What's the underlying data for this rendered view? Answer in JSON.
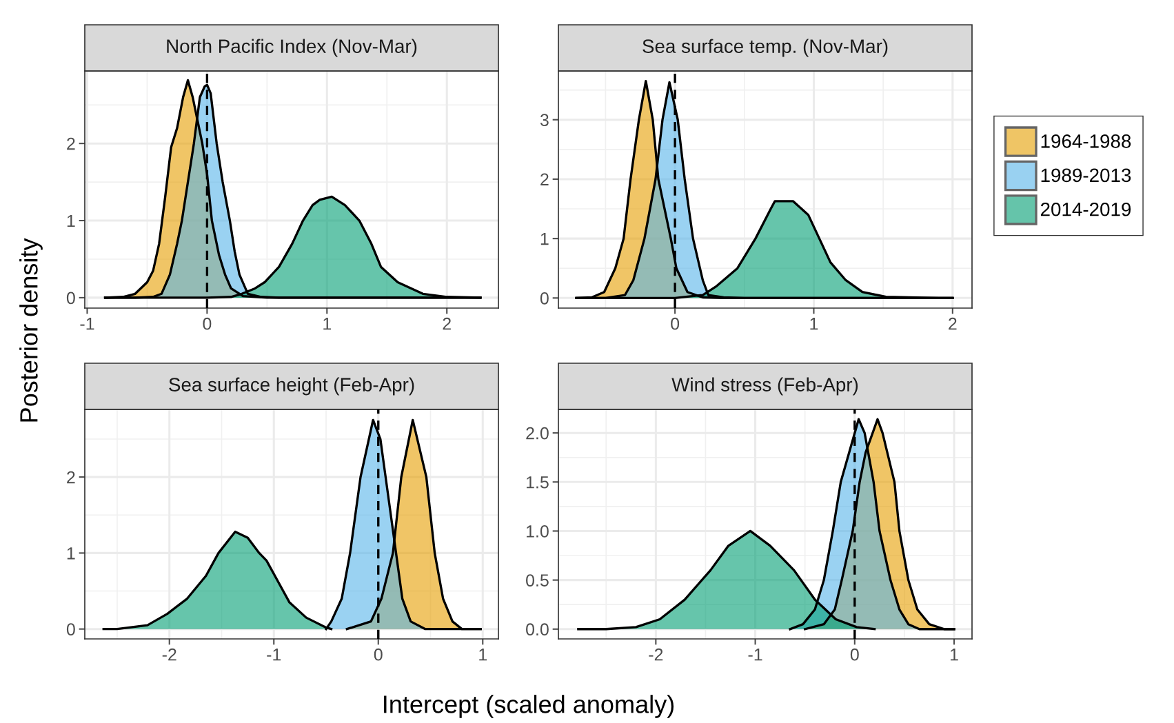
{
  "chart_data": [
    {
      "type": "area",
      "title": "North Pacific Index (Nov-Mar)",
      "ylabel": "Posterior density",
      "xlim": [
        -1.02,
        2.43
      ],
      "ylim": [
        -0.135,
        2.94
      ],
      "xticks": [
        -1,
        0,
        1,
        2
      ],
      "yticks": [
        0,
        1,
        2
      ],
      "grid": true,
      "legend": "right",
      "ref_lines": [
        {
          "axis": "x",
          "value": 0,
          "line_style": "dashed",
          "color": "#000000"
        }
      ],
      "series": [
        {
          "name": "1964-1988",
          "color": "#e69f00",
          "x": [
            -0.85,
            -0.7,
            -0.6,
            -0.5,
            -0.45,
            -0.4,
            -0.35,
            -0.3,
            -0.25,
            -0.2,
            -0.16,
            -0.12,
            -0.08,
            -0.04,
            0.0,
            0.04,
            0.1,
            0.15,
            0.2,
            0.3,
            0.5,
            2.28
          ],
          "values": [
            0,
            0.01,
            0.05,
            0.2,
            0.35,
            0.7,
            1.3,
            1.95,
            2.2,
            2.6,
            2.82,
            2.6,
            2.3,
            2.0,
            1.6,
            1.0,
            0.55,
            0.3,
            0.12,
            0.02,
            0,
            0
          ]
        },
        {
          "name": "1989-2013",
          "color": "#56b4e9",
          "x": [
            -0.85,
            -0.6,
            -0.45,
            -0.38,
            -0.31,
            -0.25,
            -0.21,
            -0.15,
            -0.11,
            -0.06,
            -0.02,
            0.0,
            0.03,
            0.08,
            0.13,
            0.19,
            0.23,
            0.27,
            0.34,
            0.45,
            0.6,
            2.28
          ],
          "values": [
            0,
            0,
            0.01,
            0.05,
            0.3,
            0.7,
            1.0,
            1.6,
            2.0,
            2.6,
            2.74,
            2.76,
            2.65,
            2.0,
            1.5,
            1.0,
            0.6,
            0.3,
            0.05,
            0.01,
            0,
            0
          ]
        },
        {
          "name": "2014-2019",
          "color": "#009e73",
          "x": [
            -0.85,
            0.0,
            0.2,
            0.29,
            0.4,
            0.48,
            0.6,
            0.71,
            0.8,
            0.88,
            0.94,
            1.04,
            1.15,
            1.27,
            1.37,
            1.45,
            1.59,
            1.8,
            2.0,
            2.28
          ],
          "values": [
            0,
            0,
            0.01,
            0.05,
            0.12,
            0.2,
            0.4,
            0.7,
            1.0,
            1.2,
            1.27,
            1.31,
            1.2,
            1.0,
            0.7,
            0.4,
            0.2,
            0.05,
            0.01,
            0
          ]
        }
      ]
    },
    {
      "type": "area",
      "title": "Sea surface temp. (Nov-Mar)",
      "xlim": [
        -0.84,
        2.14
      ],
      "ylim": [
        -0.17,
        3.82
      ],
      "xticks": [
        0,
        1,
        2
      ],
      "yticks": [
        0,
        1,
        2,
        3
      ],
      "grid": true,
      "legend": "right",
      "ref_lines": [
        {
          "axis": "x",
          "value": 0,
          "line_style": "dashed",
          "color": "#000000"
        }
      ],
      "series": [
        {
          "name": "1964-1988",
          "color": "#e69f00",
          "x": [
            -0.71,
            -0.6,
            -0.51,
            -0.43,
            -0.37,
            -0.32,
            -0.26,
            -0.21,
            -0.16,
            -0.12,
            -0.03,
            0.01,
            0.09,
            0.2,
            0.35,
            2.0
          ],
          "values": [
            0,
            0.01,
            0.1,
            0.5,
            1.0,
            2.0,
            3.0,
            3.65,
            3.0,
            2.0,
            1.0,
            0.5,
            0.1,
            0.01,
            0,
            0
          ]
        },
        {
          "name": "1989-2013",
          "color": "#56b4e9",
          "x": [
            -0.71,
            -0.5,
            -0.36,
            -0.3,
            -0.22,
            -0.14,
            -0.09,
            -0.04,
            0.02,
            0.07,
            0.13,
            0.2,
            0.24,
            0.35,
            0.5,
            2.0
          ],
          "values": [
            0,
            0,
            0.05,
            0.3,
            1.0,
            2.0,
            3.0,
            3.63,
            3.0,
            2.0,
            1.0,
            0.3,
            0.05,
            0.01,
            0,
            0
          ]
        },
        {
          "name": "2014-2019",
          "color": "#009e73",
          "x": [
            -0.71,
            0.0,
            0.2,
            0.3,
            0.45,
            0.58,
            0.69,
            0.72,
            0.85,
            0.96,
            1.04,
            1.12,
            1.23,
            1.35,
            1.52,
            1.9,
            2.0
          ],
          "values": [
            0,
            0,
            0.05,
            0.2,
            0.5,
            1.0,
            1.5,
            1.63,
            1.63,
            1.4,
            1.0,
            0.6,
            0.3,
            0.1,
            0.02,
            0,
            0
          ]
        }
      ]
    },
    {
      "type": "area",
      "title": "Sea surface height (Feb-Apr)",
      "xlabel": "Intercept (scaled anomaly)",
      "xlim": [
        -2.81,
        1.15
      ],
      "ylim": [
        -0.13,
        2.89
      ],
      "xticks": [
        -2,
        -1,
        0,
        1
      ],
      "yticks": [
        0,
        1,
        2
      ],
      "grid": true,
      "legend": "right",
      "ref_lines": [
        {
          "axis": "x",
          "value": 0,
          "line_style": "dashed",
          "color": "#000000"
        }
      ],
      "series": [
        {
          "name": "1964-1988",
          "color": "#e69f00",
          "x": [
            -0.3,
            -0.07,
            0.03,
            0.14,
            0.22,
            0.33,
            0.46,
            0.54,
            0.62,
            0.71,
            0.8,
            0.98
          ],
          "values": [
            0,
            0.1,
            0.4,
            1.0,
            2.0,
            2.75,
            2.0,
            1.0,
            0.4,
            0.1,
            0,
            0
          ]
        },
        {
          "name": "1989-2013",
          "color": "#56b4e9",
          "x": [
            -0.5,
            -0.45,
            -0.35,
            -0.27,
            -0.17,
            -0.05,
            0.02,
            0.07,
            0.17,
            0.23,
            0.31,
            0.45,
            0.98
          ],
          "values": [
            0,
            0.1,
            0.4,
            1.0,
            2.0,
            2.75,
            2.5,
            2.0,
            1.0,
            0.4,
            0.1,
            0,
            0
          ]
        },
        {
          "name": "2014-2019",
          "color": "#009e73",
          "x": [
            -2.63,
            -2.5,
            -2.21,
            -2.02,
            -1.83,
            -1.65,
            -1.53,
            -1.37,
            -1.25,
            -1.14,
            -1.07,
            -0.95,
            -0.85,
            -0.69,
            -0.5,
            -0.45
          ],
          "values": [
            0,
            0,
            0.05,
            0.2,
            0.4,
            0.7,
            1.0,
            1.28,
            1.2,
            1.0,
            0.9,
            0.6,
            0.35,
            0.15,
            0.02,
            0
          ]
        }
      ]
    },
    {
      "type": "area",
      "title": "Wind stress (Feb-Apr)",
      "xlim": [
        -2.98,
        1.18
      ],
      "ylim": [
        -0.1,
        2.24
      ],
      "xticks": [
        -2,
        -1,
        0,
        1
      ],
      "yticks": [
        {
          "value": 0,
          "label": "0.0"
        },
        {
          "value": 0.5,
          "label": "0.5"
        },
        {
          "value": 1,
          "label": "1.0"
        },
        {
          "value": 1.5,
          "label": "1.5"
        },
        {
          "value": 2,
          "label": "2.0"
        }
      ],
      "grid": true,
      "legend": "right",
      "ref_lines": [
        {
          "axis": "x",
          "value": 0,
          "line_style": "dashed",
          "color": "#000000"
        }
      ],
      "series": [
        {
          "name": "1964-1988",
          "color": "#e69f00",
          "x": [
            -0.5,
            -0.31,
            -0.2,
            -0.13,
            -0.02,
            0.05,
            0.11,
            0.23,
            0.28,
            0.4,
            0.45,
            0.54,
            0.63,
            0.75,
            0.9,
            1.0
          ],
          "values": [
            0,
            0.05,
            0.2,
            0.5,
            1.0,
            1.5,
            1.8,
            2.14,
            2.0,
            1.5,
            1.0,
            0.5,
            0.2,
            0.05,
            0,
            0
          ]
        },
        {
          "name": "1989-2013",
          "color": "#56b4e9",
          "x": [
            -0.65,
            -0.52,
            -0.4,
            -0.31,
            -0.22,
            -0.14,
            0.04,
            0.1,
            0.19,
            0.25,
            0.36,
            0.45,
            0.54,
            0.65,
            1.0
          ],
          "values": [
            0,
            0.05,
            0.2,
            0.5,
            1.0,
            1.5,
            2.14,
            2.0,
            1.5,
            1.0,
            0.5,
            0.2,
            0.05,
            0,
            0
          ]
        },
        {
          "name": "2014-2019",
          "color": "#009e73",
          "x": [
            -2.78,
            -2.5,
            -2.2,
            -1.96,
            -1.71,
            -1.45,
            -1.27,
            -1.05,
            -0.85,
            -0.61,
            -0.4,
            -0.19,
            0.02,
            0.2
          ],
          "values": [
            0,
            0,
            0.02,
            0.1,
            0.3,
            0.6,
            0.85,
            1.0,
            0.85,
            0.6,
            0.3,
            0.1,
            0.02,
            0
          ]
        }
      ]
    }
  ]
}
